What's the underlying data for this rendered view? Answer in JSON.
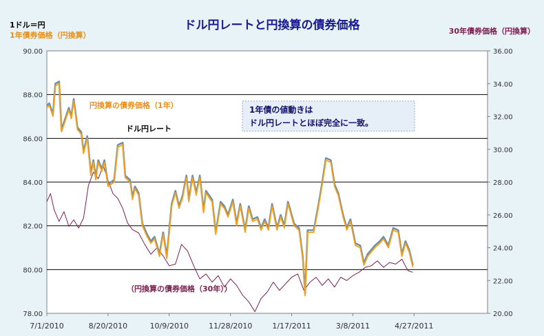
{
  "chart_data": {
    "type": "line",
    "title": "ドル円レートと円換算の債券価格",
    "left_axis_title_1": "1ドル＝円",
    "left_axis_title_2": "1年債券価格（円換算）",
    "right_axis_title": "30年債券価格（円換算）",
    "ylim_left": [
      78,
      90
    ],
    "yticks_left": [
      "78.00",
      "80.00",
      "82.00",
      "84.00",
      "86.00",
      "88.00",
      "90.00"
    ],
    "ylim_right": [
      20,
      36
    ],
    "yticks_right": [
      "20.00",
      "22.00",
      "24.00",
      "26.00",
      "28.00",
      "30.00",
      "32.00",
      "34.00",
      "36.00"
    ],
    "xticks": [
      "7/1/2010",
      "8/20/2010",
      "10/9/2010",
      "11/28/2010",
      "1/17/2011",
      "3/8/2011",
      "4/27/2011"
    ],
    "xlim_days": [
      0,
      360
    ],
    "grid": "horizontal",
    "annotation_box": [
      "1年債の値動きは",
      "ドル円レートとほぼ完全に一致。"
    ],
    "series": [
      {
        "name": "ドル円レート",
        "axis": "left",
        "color": "#6f8fa8",
        "points": [
          [
            0,
            87.5
          ],
          [
            2,
            87.6
          ],
          [
            5,
            87.1
          ],
          [
            7,
            88.5
          ],
          [
            10,
            88.6
          ],
          [
            12,
            86.4
          ],
          [
            15,
            86.9
          ],
          [
            18,
            87.4
          ],
          [
            20,
            87.0
          ],
          [
            22,
            87.8
          ],
          [
            25,
            86.5
          ],
          [
            28,
            86.3
          ],
          [
            30,
            85.4
          ],
          [
            33,
            86.1
          ],
          [
            36,
            84.4
          ],
          [
            38,
            85.0
          ],
          [
            40,
            84.2
          ],
          [
            42,
            85.0
          ],
          [
            45,
            84.6
          ],
          [
            47,
            85.0
          ],
          [
            50,
            83.9
          ],
          [
            55,
            84.1
          ],
          [
            58,
            85.7
          ],
          [
            62,
            85.8
          ],
          [
            64,
            84.3
          ],
          [
            68,
            84.1
          ],
          [
            70,
            83.3
          ],
          [
            72,
            83.8
          ],
          [
            75,
            83.5
          ],
          [
            78,
            82.1
          ],
          [
            82,
            81.6
          ],
          [
            85,
            81.3
          ],
          [
            88,
            81.5
          ],
          [
            92,
            80.7
          ],
          [
            95,
            81.7
          ],
          [
            98,
            80.6
          ],
          [
            102,
            83.0
          ],
          [
            105,
            83.6
          ],
          [
            108,
            82.9
          ],
          [
            111,
            83.4
          ],
          [
            114,
            84.3
          ],
          [
            116,
            83.2
          ],
          [
            119,
            84.3
          ],
          [
            122,
            83.5
          ],
          [
            125,
            84.3
          ],
          [
            128,
            82.7
          ],
          [
            130,
            83.6
          ],
          [
            135,
            83.2
          ],
          [
            138,
            81.7
          ],
          [
            142,
            83.1
          ],
          [
            145,
            82.9
          ],
          [
            148,
            82.5
          ],
          [
            152,
            83.2
          ],
          [
            155,
            82.1
          ],
          [
            158,
            83.0
          ],
          [
            162,
            81.8
          ],
          [
            165,
            82.9
          ],
          [
            168,
            82.3
          ],
          [
            172,
            82.4
          ],
          [
            175,
            81.9
          ],
          [
            178,
            82.3
          ],
          [
            181,
            81.9
          ],
          [
            184,
            83.0
          ],
          [
            188,
            81.9
          ],
          [
            191,
            82.5
          ],
          [
            194,
            82.0
          ],
          [
            197,
            83.1
          ],
          [
            202,
            82.1
          ],
          [
            206,
            81.9
          ],
          [
            209,
            80.6
          ],
          [
            211,
            78.9
          ],
          [
            213,
            81.8
          ],
          [
            218,
            81.8
          ],
          [
            222,
            83.0
          ],
          [
            225,
            84.0
          ],
          [
            228,
            85.1
          ],
          [
            232,
            85.0
          ],
          [
            235,
            83.9
          ],
          [
            238,
            83.5
          ],
          [
            242,
            82.5
          ],
          [
            245,
            81.9
          ],
          [
            248,
            82.3
          ],
          [
            252,
            81.2
          ],
          [
            256,
            81.1
          ],
          [
            259,
            80.3
          ],
          [
            262,
            80.7
          ],
          [
            268,
            81.1
          ],
          [
            272,
            81.3
          ],
          [
            275,
            81.5
          ],
          [
            279,
            81.1
          ],
          [
            283,
            81.9
          ],
          [
            287,
            81.8
          ],
          [
            290,
            80.7
          ],
          [
            293,
            81.3
          ],
          [
            296,
            80.9
          ],
          [
            299,
            80.2
          ]
        ]
      },
      {
        "name": "円換算の債券価格（1年）",
        "axis": "left",
        "color": "#f5a21a",
        "points": [
          [
            0,
            87.4
          ],
          [
            2,
            87.5
          ],
          [
            5,
            87.0
          ],
          [
            7,
            88.4
          ],
          [
            10,
            88.5
          ],
          [
            12,
            86.3
          ],
          [
            15,
            86.8
          ],
          [
            18,
            87.3
          ],
          [
            20,
            86.9
          ],
          [
            22,
            87.7
          ],
          [
            25,
            86.4
          ],
          [
            28,
            86.2
          ],
          [
            30,
            85.3
          ],
          [
            33,
            86.0
          ],
          [
            36,
            84.3
          ],
          [
            38,
            84.9
          ],
          [
            40,
            84.1
          ],
          [
            42,
            84.9
          ],
          [
            45,
            84.5
          ],
          [
            47,
            84.9
          ],
          [
            50,
            83.8
          ],
          [
            55,
            84.0
          ],
          [
            58,
            85.6
          ],
          [
            62,
            85.7
          ],
          [
            64,
            84.2
          ],
          [
            68,
            84.0
          ],
          [
            70,
            83.2
          ],
          [
            72,
            83.7
          ],
          [
            75,
            83.4
          ],
          [
            78,
            82.0
          ],
          [
            82,
            81.5
          ],
          [
            85,
            81.2
          ],
          [
            88,
            81.4
          ],
          [
            92,
            80.6
          ],
          [
            95,
            81.6
          ],
          [
            98,
            80.5
          ],
          [
            102,
            82.9
          ],
          [
            105,
            83.5
          ],
          [
            108,
            82.8
          ],
          [
            111,
            83.3
          ],
          [
            114,
            84.2
          ],
          [
            116,
            83.1
          ],
          [
            119,
            84.2
          ],
          [
            122,
            83.4
          ],
          [
            125,
            84.2
          ],
          [
            128,
            82.6
          ],
          [
            130,
            83.5
          ],
          [
            135,
            83.1
          ],
          [
            138,
            81.6
          ],
          [
            142,
            83.0
          ],
          [
            145,
            82.8
          ],
          [
            148,
            82.4
          ],
          [
            152,
            83.1
          ],
          [
            155,
            82.0
          ],
          [
            158,
            82.9
          ],
          [
            162,
            81.7
          ],
          [
            165,
            82.8
          ],
          [
            168,
            82.2
          ],
          [
            172,
            82.3
          ],
          [
            175,
            81.8
          ],
          [
            178,
            82.2
          ],
          [
            181,
            81.8
          ],
          [
            184,
            82.9
          ],
          [
            188,
            81.8
          ],
          [
            191,
            82.4
          ],
          [
            194,
            81.9
          ],
          [
            197,
            83.0
          ],
          [
            202,
            82.0
          ],
          [
            206,
            81.8
          ],
          [
            209,
            80.5
          ],
          [
            211,
            78.8
          ],
          [
            213,
            81.7
          ],
          [
            218,
            81.7
          ],
          [
            222,
            82.9
          ],
          [
            225,
            83.9
          ],
          [
            228,
            85.0
          ],
          [
            232,
            84.9
          ],
          [
            235,
            83.8
          ],
          [
            238,
            83.4
          ],
          [
            242,
            82.4
          ],
          [
            245,
            81.8
          ],
          [
            248,
            82.2
          ],
          [
            252,
            81.1
          ],
          [
            256,
            81.0
          ],
          [
            259,
            80.2
          ],
          [
            262,
            80.6
          ],
          [
            268,
            81.0
          ],
          [
            272,
            81.2
          ],
          [
            275,
            81.4
          ],
          [
            279,
            81.0
          ],
          [
            283,
            81.8
          ],
          [
            287,
            81.7
          ],
          [
            290,
            80.6
          ],
          [
            293,
            81.2
          ],
          [
            296,
            80.8
          ],
          [
            299,
            80.1
          ]
        ]
      },
      {
        "name": "円換算の債券価格（30年）",
        "axis": "right",
        "color": "#7a2050",
        "points": [
          [
            0,
            26.8
          ],
          [
            3,
            27.3
          ],
          [
            6,
            26.3
          ],
          [
            10,
            25.6
          ],
          [
            14,
            26.2
          ],
          [
            18,
            25.3
          ],
          [
            22,
            25.7
          ],
          [
            26,
            25.2
          ],
          [
            30,
            25.8
          ],
          [
            34,
            27.8
          ],
          [
            38,
            28.6
          ],
          [
            42,
            28.2
          ],
          [
            46,
            29.0
          ],
          [
            50,
            28.1
          ],
          [
            54,
            27.3
          ],
          [
            58,
            27.0
          ],
          [
            62,
            26.4
          ],
          [
            66,
            25.5
          ],
          [
            70,
            25.1
          ],
          [
            75,
            24.9
          ],
          [
            80,
            24.2
          ],
          [
            85,
            23.6
          ],
          [
            90,
            24.0
          ],
          [
            95,
            23.5
          ],
          [
            100,
            22.9
          ],
          [
            105,
            23.0
          ],
          [
            110,
            24.2
          ],
          [
            115,
            23.8
          ],
          [
            120,
            22.9
          ],
          [
            125,
            22.1
          ],
          [
            130,
            22.4
          ],
          [
            135,
            21.9
          ],
          [
            140,
            22.3
          ],
          [
            145,
            21.6
          ],
          [
            150,
            22.1
          ],
          [
            155,
            21.7
          ],
          [
            160,
            21.1
          ],
          [
            165,
            20.7
          ],
          [
            170,
            20.1
          ],
          [
            175,
            20.9
          ],
          [
            180,
            21.3
          ],
          [
            185,
            21.9
          ],
          [
            190,
            21.4
          ],
          [
            195,
            21.8
          ],
          [
            200,
            22.2
          ],
          [
            205,
            22.4
          ],
          [
            210,
            21.4
          ],
          [
            215,
            21.9
          ],
          [
            220,
            22.2
          ],
          [
            225,
            21.7
          ],
          [
            230,
            22.1
          ],
          [
            235,
            21.6
          ],
          [
            240,
            22.2
          ],
          [
            245,
            22.0
          ],
          [
            250,
            22.3
          ],
          [
            255,
            22.5
          ],
          [
            260,
            22.8
          ],
          [
            265,
            22.9
          ],
          [
            270,
            23.2
          ],
          [
            275,
            22.8
          ],
          [
            280,
            23.1
          ],
          [
            285,
            23.0
          ],
          [
            290,
            23.3
          ],
          [
            295,
            22.6
          ],
          [
            299,
            22.5
          ]
        ]
      }
    ]
  },
  "labels": {
    "series_1yr_label": "円換算の債券価格（1年）",
    "fx_label": "ドル円レート",
    "series_30yr_label": "（円換算の債券価格（30年））"
  }
}
